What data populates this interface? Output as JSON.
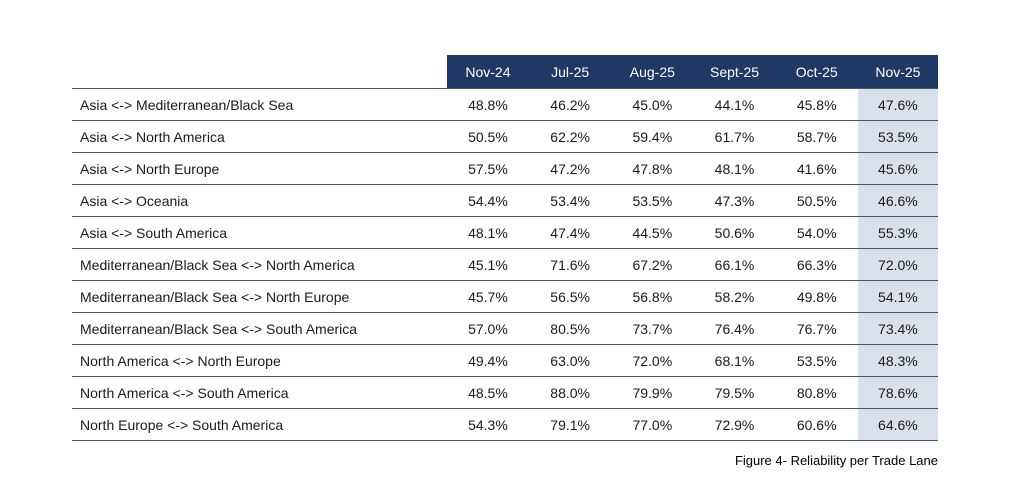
{
  "colors": {
    "header_bg": "#1F3864",
    "header_text": "#FFFFFF",
    "highlight_col_bg": "#D9E0E9",
    "row_line": "#44546A"
  },
  "table": {
    "columns": [
      "Nov-24",
      "Jul-25",
      "Aug-25",
      "Sept-25",
      "Oct-25",
      "Nov-25"
    ],
    "rows": [
      {
        "lane": "Asia <-> Mediterranean/Black Sea",
        "values": [
          "48.8%",
          "46.2%",
          "45.0%",
          "44.1%",
          "45.8%",
          "47.6%"
        ]
      },
      {
        "lane": "Asia <-> North America",
        "values": [
          "50.5%",
          "62.2%",
          "59.4%",
          "61.7%",
          "58.7%",
          "53.5%"
        ]
      },
      {
        "lane": "Asia <-> North Europe",
        "values": [
          "57.5%",
          "47.2%",
          "47.8%",
          "48.1%",
          "41.6%",
          "45.6%"
        ]
      },
      {
        "lane": "Asia <-> Oceania",
        "values": [
          "54.4%",
          "53.4%",
          "53.5%",
          "47.3%",
          "50.5%",
          "46.6%"
        ]
      },
      {
        "lane": "Asia <-> South America",
        "values": [
          "48.1%",
          "47.4%",
          "44.5%",
          "50.6%",
          "54.0%",
          "55.3%"
        ]
      },
      {
        "lane": "Mediterranean/Black Sea <-> North America",
        "values": [
          "45.1%",
          "71.6%",
          "67.2%",
          "66.1%",
          "66.3%",
          "72.0%"
        ]
      },
      {
        "lane": "Mediterranean/Black Sea <-> North Europe",
        "values": [
          "45.7%",
          "56.5%",
          "56.8%",
          "58.2%",
          "49.8%",
          "54.1%"
        ]
      },
      {
        "lane": "Mediterranean/Black Sea <-> South America",
        "values": [
          "57.0%",
          "80.5%",
          "73.7%",
          "76.4%",
          "76.7%",
          "73.4%"
        ]
      },
      {
        "lane": "North America <-> North Europe",
        "values": [
          "49.4%",
          "63.0%",
          "72.0%",
          "68.1%",
          "53.5%",
          "48.3%"
        ]
      },
      {
        "lane": "North America <-> South America",
        "values": [
          "48.5%",
          "88.0%",
          "79.9%",
          "79.5%",
          "80.8%",
          "78.6%"
        ]
      },
      {
        "lane": "North Europe <-> South America",
        "values": [
          "54.3%",
          "79.1%",
          "77.0%",
          "72.9%",
          "60.6%",
          "64.6%"
        ]
      }
    ]
  },
  "caption": "Figure 4- Reliability per Trade Lane"
}
